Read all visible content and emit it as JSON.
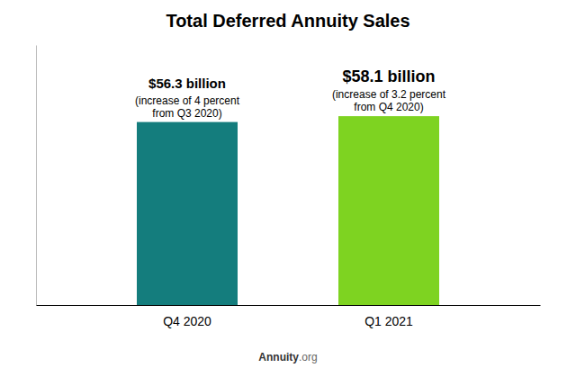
{
  "chart_data": {
    "type": "bar",
    "title": "Total Deferred Annuity Sales",
    "categories": [
      "Q4 2020",
      "Q1 2021"
    ],
    "values": [
      56.3,
      58.1
    ],
    "colors": [
      "#147d7d",
      "#7ed321"
    ],
    "data_labels": true,
    "value_labels": [
      "$56.3 billion",
      "$58.1 billion"
    ],
    "annotations": [
      "(increase of 4 percent\nfrom Q3 2020)",
      "(increase of 3.2 percent\nfrom Q4 2020)"
    ],
    "footer": [
      "Annuity",
      ".org"
    ],
    "ylim": [
      0,
      80
    ],
    "grid": false,
    "tick_labels": "x"
  }
}
